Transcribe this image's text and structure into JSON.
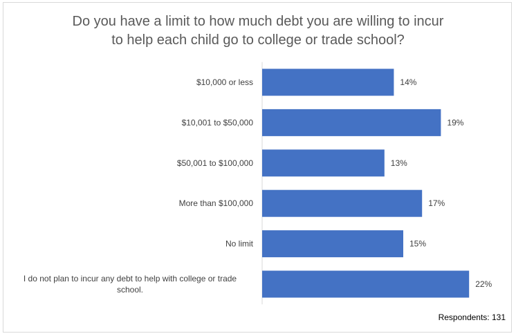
{
  "chart_data": {
    "type": "bar",
    "orientation": "horizontal",
    "title_lines": [
      "Do you have a limit to how much debt you are willing to incur",
      "to help each child go to college or trade school?"
    ],
    "categories": [
      [
        "$10,000 or less"
      ],
      [
        "$10,001 to $50,000"
      ],
      [
        "$50,001 to $100,000"
      ],
      [
        "More than $100,000"
      ],
      [
        "No limit"
      ],
      [
        "I do not plan to incur any debt to help with college or trade",
        "school."
      ]
    ],
    "values": [
      14,
      19,
      13,
      17,
      15,
      22
    ],
    "value_labels": [
      "14%",
      "19%",
      "13%",
      "17%",
      "15%",
      "22%"
    ],
    "unit": "%",
    "bar_color": "#4472c4",
    "xlim": [
      0,
      25
    ],
    "grid": false,
    "legend": "none"
  },
  "footer": {
    "respondents": "Respondents: 131"
  }
}
